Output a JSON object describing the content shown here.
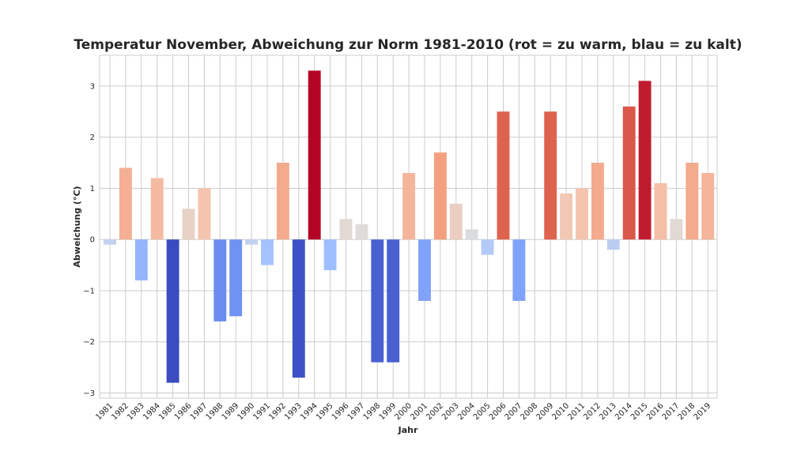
{
  "chart_data": {
    "type": "bar",
    "title": "Temperatur November, Abweichung zur Norm 1981-2010 (rot = zu warm, blau = zu kalt)",
    "xlabel": "Jahr",
    "ylabel": "Abweichung (°C)",
    "ylim": [
      -3.1,
      3.6
    ],
    "yticks": [
      -3,
      -2,
      -1,
      0,
      1,
      2,
      3
    ],
    "ytick_labels": [
      "−3",
      "−2",
      "−1",
      "0",
      "1",
      "2",
      "3"
    ],
    "grid": true,
    "colormap": "coolwarm",
    "color_range": [
      -2.8,
      3.3
    ],
    "categories": [
      "1981",
      "1982",
      "1983",
      "1984",
      "1985",
      "1986",
      "1987",
      "1988",
      "1989",
      "1990",
      "1991",
      "1992",
      "1993",
      "1994",
      "1995",
      "1996",
      "1997",
      "1998",
      "1999",
      "2000",
      "2001",
      "2002",
      "2003",
      "2004",
      "2005",
      "2006",
      "2007",
      "2008",
      "2009",
      "2010",
      "2011",
      "2012",
      "2013",
      "2014",
      "2015",
      "2016",
      "2017",
      "2018",
      "2019"
    ],
    "values": [
      -0.1,
      1.4,
      -0.8,
      1.2,
      -2.8,
      0.6,
      1.0,
      -1.6,
      -1.5,
      -0.1,
      -0.5,
      1.5,
      -2.7,
      3.3,
      -0.6,
      0.4,
      0.3,
      -2.4,
      -2.4,
      1.3,
      -1.2,
      1.7,
      0.7,
      0.2,
      -0.3,
      2.5,
      -1.2,
      0.0,
      2.5,
      0.9,
      1.0,
      1.5,
      -0.2,
      2.6,
      3.1,
      1.1,
      0.4,
      1.5,
      1.3
    ]
  }
}
